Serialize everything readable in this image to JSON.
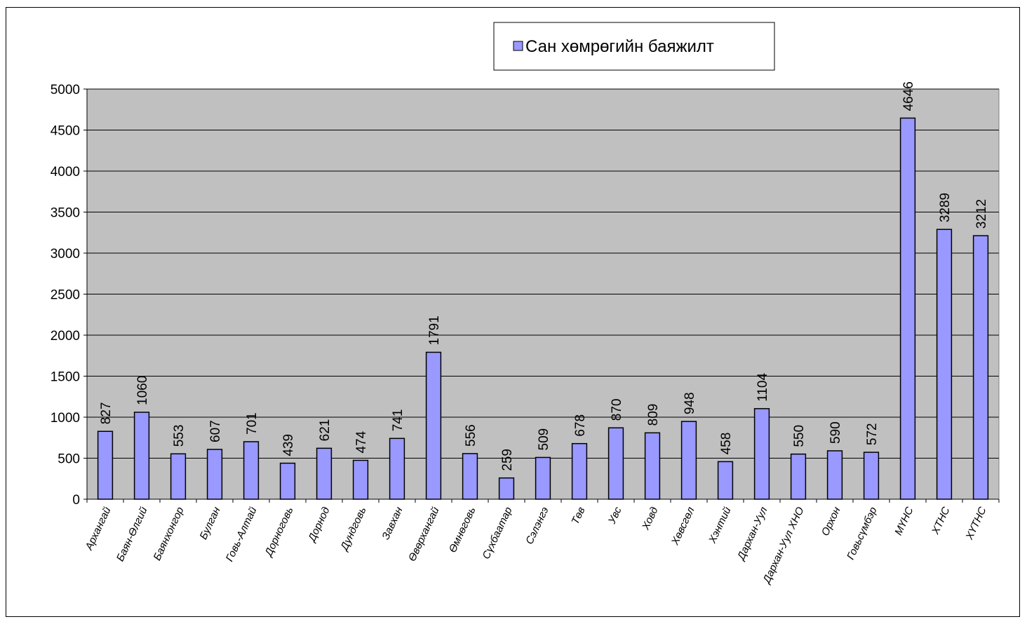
{
  "chart_data": {
    "type": "bar",
    "title": "",
    "xlabel": "",
    "ylabel": "",
    "ylim": [
      0,
      5000
    ],
    "yticks": [
      0,
      500,
      1000,
      1500,
      2000,
      2500,
      3000,
      3500,
      4000,
      4500,
      5000
    ],
    "grid": true,
    "legend_position": "top-right",
    "plot_background": "#c0c0c0",
    "bar_color": "#9999ff",
    "categories": [
      "Архангай",
      "Баян-Өлгий",
      "Баянхонгор",
      "Булган",
      "Говь-Алтай",
      "Дорноговь",
      "Дорнод",
      "Дундговь",
      "Завхан",
      "Өвөрхангай",
      "Өмнөговь",
      "Сүхбаатар",
      "Сэлэнгэ",
      "Төв",
      "Увс",
      "Ховд",
      "Хөвсгөл",
      "Хэнтий",
      "Дархан-Уул",
      "Дархан-Уул ХНО",
      "Орхон",
      "Говьсүмбэр",
      "МҮНС",
      "ХТНС",
      "ХҮТНС"
    ],
    "series": [
      {
        "name": "Сан хөмрөгийн баяжилт",
        "values": [
          827,
          1060,
          553,
          607,
          701,
          439,
          621,
          474,
          741,
          1791,
          556,
          259,
          509,
          678,
          870,
          809,
          948,
          458,
          1104,
          550,
          590,
          572,
          4646,
          3289,
          3212
        ]
      }
    ]
  }
}
